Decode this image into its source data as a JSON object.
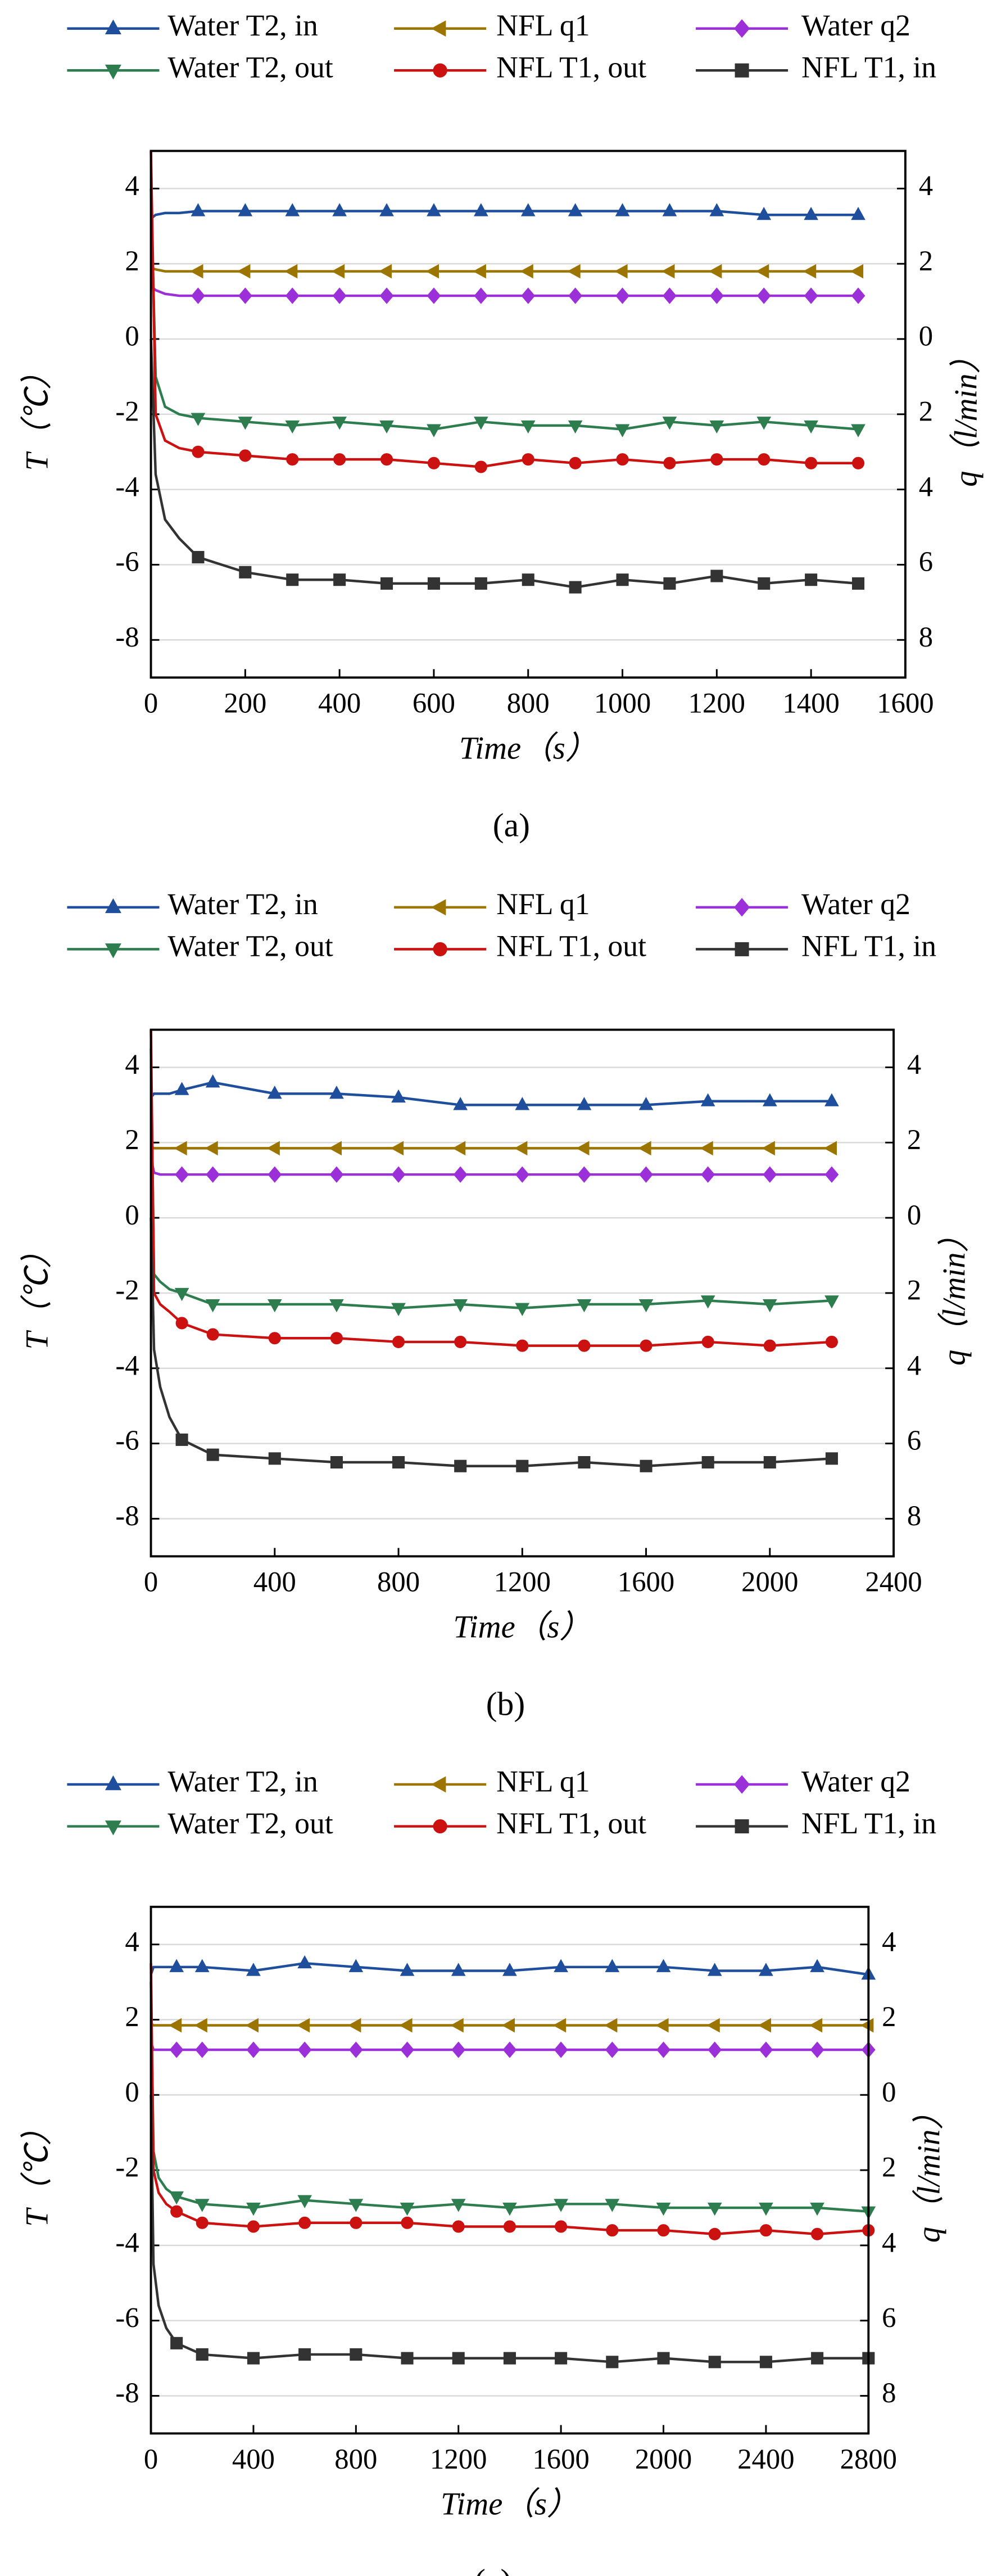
{
  "chart_data": [
    {
      "type": "line",
      "xlabel": "Time（s）",
      "ylabel": "T（℃）",
      "y2label": "q（l/min）",
      "caption": "(a)",
      "xlim": [
        0,
        1600
      ],
      "xticks": [
        0,
        200,
        400,
        600,
        800,
        1000,
        1200,
        1400,
        1600
      ],
      "ylim": [
        -9,
        5
      ],
      "yticks": [
        -8,
        -6,
        -4,
        -2,
        0,
        2,
        4
      ],
      "y2lim": [
        -9,
        5
      ],
      "y2ticks": [
        {
          "value": -8,
          "label": "8"
        },
        {
          "value": -6,
          "label": "6"
        },
        {
          "value": -4,
          "label": "4"
        },
        {
          "value": -2,
          "label": "2"
        },
        0,
        2,
        4
      ],
      "grid": true,
      "x": [
        0,
        10,
        30,
        60,
        100,
        200,
        300,
        400,
        500,
        600,
        700,
        800,
        900,
        1000,
        1100,
        1200,
        1300,
        1400,
        1500
      ],
      "series": [
        {
          "name": "Water T2, in",
          "color": "#1f4e9c",
          "marker": "triangle-up",
          "values": [
            3.2,
            3.3,
            3.35,
            3.35,
            3.4,
            3.4,
            3.4,
            3.4,
            3.4,
            3.4,
            3.4,
            3.4,
            3.4,
            3.4,
            3.4,
            3.4,
            3.3,
            3.3,
            3.3
          ]
        },
        {
          "name": "NFL q1",
          "color": "#9c7400",
          "marker": "triangle-left",
          "axis": "y2",
          "values": [
            1.9,
            1.85,
            1.8,
            1.8,
            1.8,
            1.8,
            1.8,
            1.8,
            1.8,
            1.8,
            1.8,
            1.8,
            1.8,
            1.8,
            1.8,
            1.8,
            1.8,
            1.8,
            1.8
          ]
        },
        {
          "name": "Water q2",
          "color": "#9b30d9",
          "marker": "diamond",
          "axis": "y2",
          "values": [
            1.4,
            1.3,
            1.2,
            1.15,
            1.15,
            1.15,
            1.15,
            1.15,
            1.15,
            1.15,
            1.15,
            1.15,
            1.15,
            1.15,
            1.15,
            1.15,
            1.15,
            1.15,
            1.15
          ]
        },
        {
          "name": "Water T2, out",
          "color": "#2e7d4f",
          "marker": "triangle-down",
          "values": [
            4,
            -1,
            -1.8,
            -2,
            -2.1,
            -2.2,
            -2.3,
            -2.2,
            -2.3,
            -2.4,
            -2.2,
            -2.3,
            -2.3,
            -2.4,
            -2.2,
            -2.3,
            -2.2,
            -2.3,
            -2.4
          ]
        },
        {
          "name": "NFL T1, out",
          "color": "#cc1111",
          "marker": "circle",
          "values": [
            5,
            -2,
            -2.7,
            -2.9,
            -3.0,
            -3.1,
            -3.2,
            -3.2,
            -3.2,
            -3.3,
            -3.4,
            -3.2,
            -3.3,
            -3.2,
            -3.3,
            -3.2,
            -3.2,
            -3.3,
            -3.3
          ]
        },
        {
          "name": "NFL T1, in",
          "color": "#333333",
          "marker": "square",
          "values": [
            0,
            -3.6,
            -4.8,
            -5.3,
            -5.8,
            -6.2,
            -6.4,
            -6.4,
            -6.5,
            -6.5,
            -6.5,
            -6.4,
            -6.6,
            -6.4,
            -6.5,
            -6.3,
            -6.5,
            -6.4,
            -6.5
          ]
        }
      ]
    },
    {
      "type": "line",
      "xlabel": "Time（s）",
      "ylabel": "T（℃）",
      "y2label": "q（l/min）",
      "caption": "(b)",
      "xlim": [
        0,
        2400
      ],
      "xticks": [
        0,
        400,
        800,
        1200,
        1600,
        2000,
        2400
      ],
      "ylim": [
        -9,
        5
      ],
      "yticks": [
        -8,
        -6,
        -4,
        -2,
        0,
        2,
        4
      ],
      "y2lim": [
        -9,
        5
      ],
      "y2ticks": [
        {
          "value": -8,
          "label": "8"
        },
        {
          "value": -6,
          "label": "6"
        },
        {
          "value": -4,
          "label": "4"
        },
        {
          "value": -2,
          "label": "2"
        },
        0,
        2,
        4
      ],
      "grid": true,
      "x": [
        0,
        10,
        30,
        60,
        100,
        200,
        400,
        600,
        800,
        1000,
        1200,
        1400,
        1600,
        1800,
        2000,
        2200
      ],
      "series": [
        {
          "name": "Water T2, in",
          "color": "#1f4e9c",
          "marker": "triangle-up",
          "values": [
            3.2,
            3.3,
            3.3,
            3.3,
            3.4,
            3.6,
            3.3,
            3.3,
            3.2,
            3.0,
            3.0,
            3.0,
            3.0,
            3.1,
            3.1,
            3.1
          ]
        },
        {
          "name": "NFL q1",
          "color": "#9c7400",
          "marker": "triangle-left",
          "axis": "y2",
          "values": [
            1.9,
            1.85,
            1.85,
            1.85,
            1.85,
            1.85,
            1.85,
            1.85,
            1.85,
            1.85,
            1.85,
            1.85,
            1.85,
            1.85,
            1.85,
            1.85
          ]
        },
        {
          "name": "Water q2",
          "color": "#9b30d9",
          "marker": "diamond",
          "axis": "y2",
          "values": [
            1.6,
            1.2,
            1.15,
            1.15,
            1.15,
            1.15,
            1.15,
            1.15,
            1.15,
            1.15,
            1.15,
            1.15,
            1.15,
            1.15,
            1.15,
            1.15
          ]
        },
        {
          "name": "Water T2, out",
          "color": "#2e7d4f",
          "marker": "triangle-down",
          "values": [
            4.5,
            -1.5,
            -1.7,
            -1.9,
            -2,
            -2.3,
            -2.3,
            -2.3,
            -2.4,
            -2.3,
            -2.4,
            -2.3,
            -2.3,
            -2.2,
            -2.3,
            -2.2
          ]
        },
        {
          "name": "NFL T1, out",
          "color": "#cc1111",
          "marker": "circle",
          "values": [
            5,
            -2,
            -2.3,
            -2.5,
            -2.8,
            -3.1,
            -3.2,
            -3.2,
            -3.3,
            -3.3,
            -3.4,
            -3.4,
            -3.4,
            -3.3,
            -3.4,
            -3.3
          ]
        },
        {
          "name": "NFL T1, in",
          "color": "#333333",
          "marker": "square",
          "values": [
            0,
            -3.5,
            -4.5,
            -5.3,
            -5.9,
            -6.3,
            -6.4,
            -6.5,
            -6.5,
            -6.6,
            -6.6,
            -6.5,
            -6.6,
            -6.5,
            -6.5,
            -6.4
          ]
        }
      ]
    },
    {
      "type": "line",
      "xlabel": "Time（s）",
      "ylabel": "T（℃）",
      "y2label": "q（l/min）",
      "caption": "(c)",
      "xlim": [
        0,
        2800
      ],
      "xticks": [
        0,
        400,
        800,
        1200,
        1600,
        2000,
        2400,
        2800
      ],
      "ylim": [
        -9,
        5
      ],
      "yticks": [
        -8,
        -6,
        -4,
        -2,
        0,
        2,
        4
      ],
      "y2lim": [
        -9,
        5
      ],
      "y2ticks": [
        {
          "value": -8,
          "label": "8"
        },
        {
          "value": -6,
          "label": "6"
        },
        {
          "value": -4,
          "label": "4"
        },
        {
          "value": -2,
          "label": "2"
        },
        0,
        2,
        4
      ],
      "grid": true,
      "x": [
        0,
        10,
        30,
        60,
        100,
        200,
        400,
        600,
        800,
        1000,
        1200,
        1400,
        1600,
        1800,
        2000,
        2200,
        2400,
        2600,
        2800
      ],
      "series": [
        {
          "name": "Water T2, in",
          "color": "#1f4e9c",
          "marker": "triangle-up",
          "values": [
            3.2,
            3.4,
            3.4,
            3.4,
            3.4,
            3.4,
            3.3,
            3.5,
            3.4,
            3.3,
            3.3,
            3.3,
            3.4,
            3.4,
            3.4,
            3.3,
            3.3,
            3.4,
            3.2
          ]
        },
        {
          "name": "NFL q1",
          "color": "#9c7400",
          "marker": "triangle-left",
          "axis": "y2",
          "values": [
            1.9,
            1.85,
            1.85,
            1.85,
            1.85,
            1.85,
            1.85,
            1.85,
            1.85,
            1.85,
            1.85,
            1.85,
            1.85,
            1.85,
            1.85,
            1.85,
            1.85,
            1.85,
            1.85
          ]
        },
        {
          "name": "Water q2",
          "color": "#9b30d9",
          "marker": "diamond",
          "axis": "y2",
          "values": [
            1.4,
            1.2,
            1.2,
            1.2,
            1.2,
            1.2,
            1.2,
            1.2,
            1.2,
            1.2,
            1.2,
            1.2,
            1.2,
            1.2,
            1.2,
            1.2,
            1.2,
            1.2,
            1.2
          ]
        },
        {
          "name": "Water T2, out",
          "color": "#2e7d4f",
          "marker": "triangle-down",
          "values": [
            3,
            -1.5,
            -2.2,
            -2.5,
            -2.7,
            -2.9,
            -3.0,
            -2.8,
            -2.9,
            -3.0,
            -2.9,
            -3.0,
            -2.9,
            -2.9,
            -3.0,
            -3.0,
            -3.0,
            -3.0,
            -3.1
          ]
        },
        {
          "name": "NFL T1, out",
          "color": "#cc1111",
          "marker": "circle",
          "values": [
            3.5,
            -2,
            -2.6,
            -2.9,
            -3.1,
            -3.4,
            -3.5,
            -3.4,
            -3.4,
            -3.4,
            -3.5,
            -3.5,
            -3.5,
            -3.6,
            -3.6,
            -3.7,
            -3.6,
            -3.7,
            -3.6
          ]
        },
        {
          "name": "NFL T1, in",
          "color": "#333333",
          "marker": "square",
          "values": [
            0,
            -4.5,
            -5.6,
            -6.2,
            -6.6,
            -6.9,
            -7.0,
            -6.9,
            -6.9,
            -7.0,
            -7.0,
            -7.0,
            -7.0,
            -7.1,
            -7.0,
            -7.1,
            -7.1,
            -7.0,
            -7.0
          ]
        }
      ]
    }
  ]
}
